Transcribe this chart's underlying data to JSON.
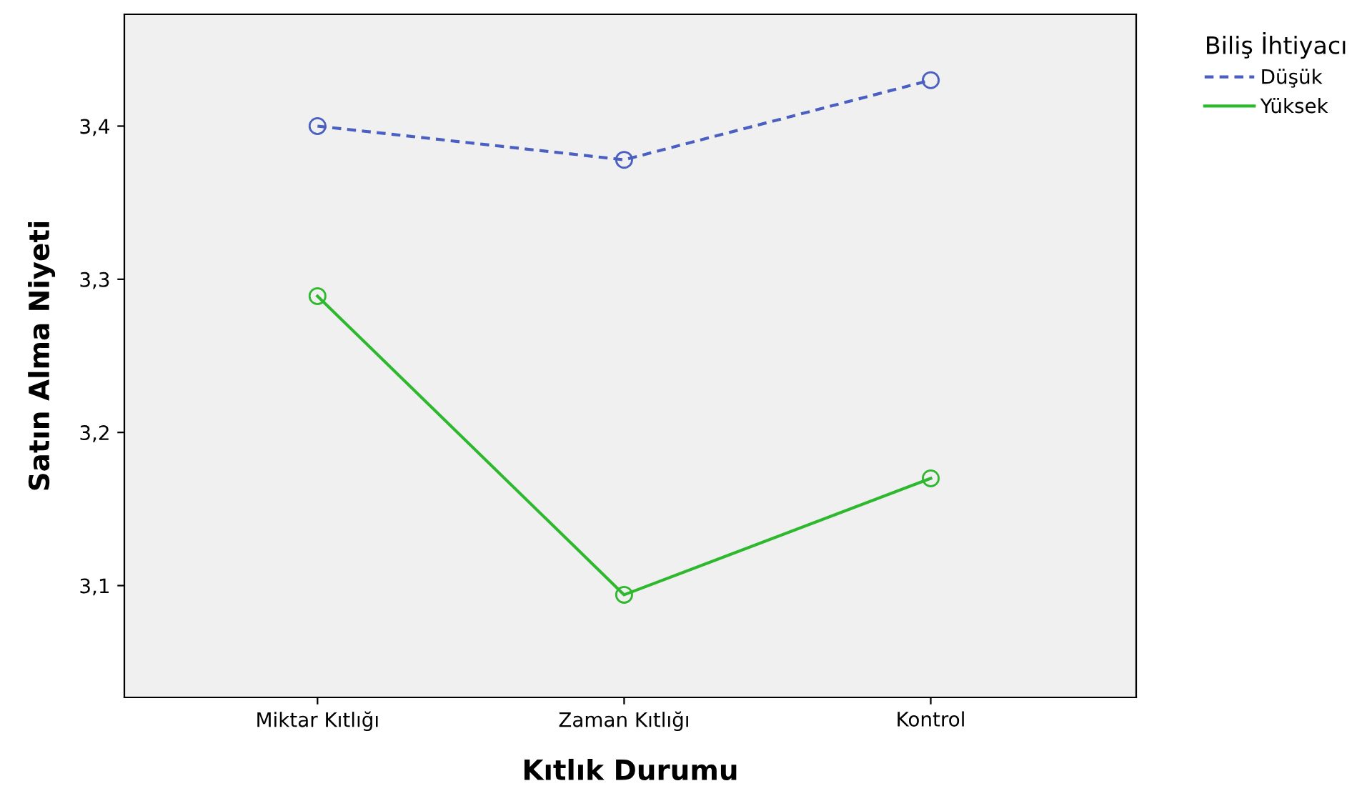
{
  "chart_data": {
    "type": "line",
    "xlabel": "Kıtlık Durumu",
    "ylabel": "Satın Alma Niyeti",
    "legend_title": "Biliş İhtiyacı",
    "legend": "top right",
    "grid": false,
    "marker": "circle",
    "categories": [
      "Miktar Kıtlığı",
      "Zaman Kıtlığı",
      "Kontrol"
    ],
    "ylim": [
      3.027,
      3.473
    ],
    "yticks": [
      {
        "value": 3.1,
        "label": "3,1"
      },
      {
        "value": 3.2,
        "label": "3,2"
      },
      {
        "value": 3.3,
        "label": "3,3"
      },
      {
        "value": 3.4,
        "label": "3,4"
      }
    ],
    "series": [
      {
        "name": "Düşük",
        "color": "#4a5fc1",
        "line_style": "dashed",
        "values": [
          3.4,
          3.378,
          3.43
        ]
      },
      {
        "name": "Yüksek",
        "color": "#2eb82e",
        "line_style": "solid",
        "values": [
          3.289,
          3.094,
          3.17
        ]
      }
    ]
  }
}
